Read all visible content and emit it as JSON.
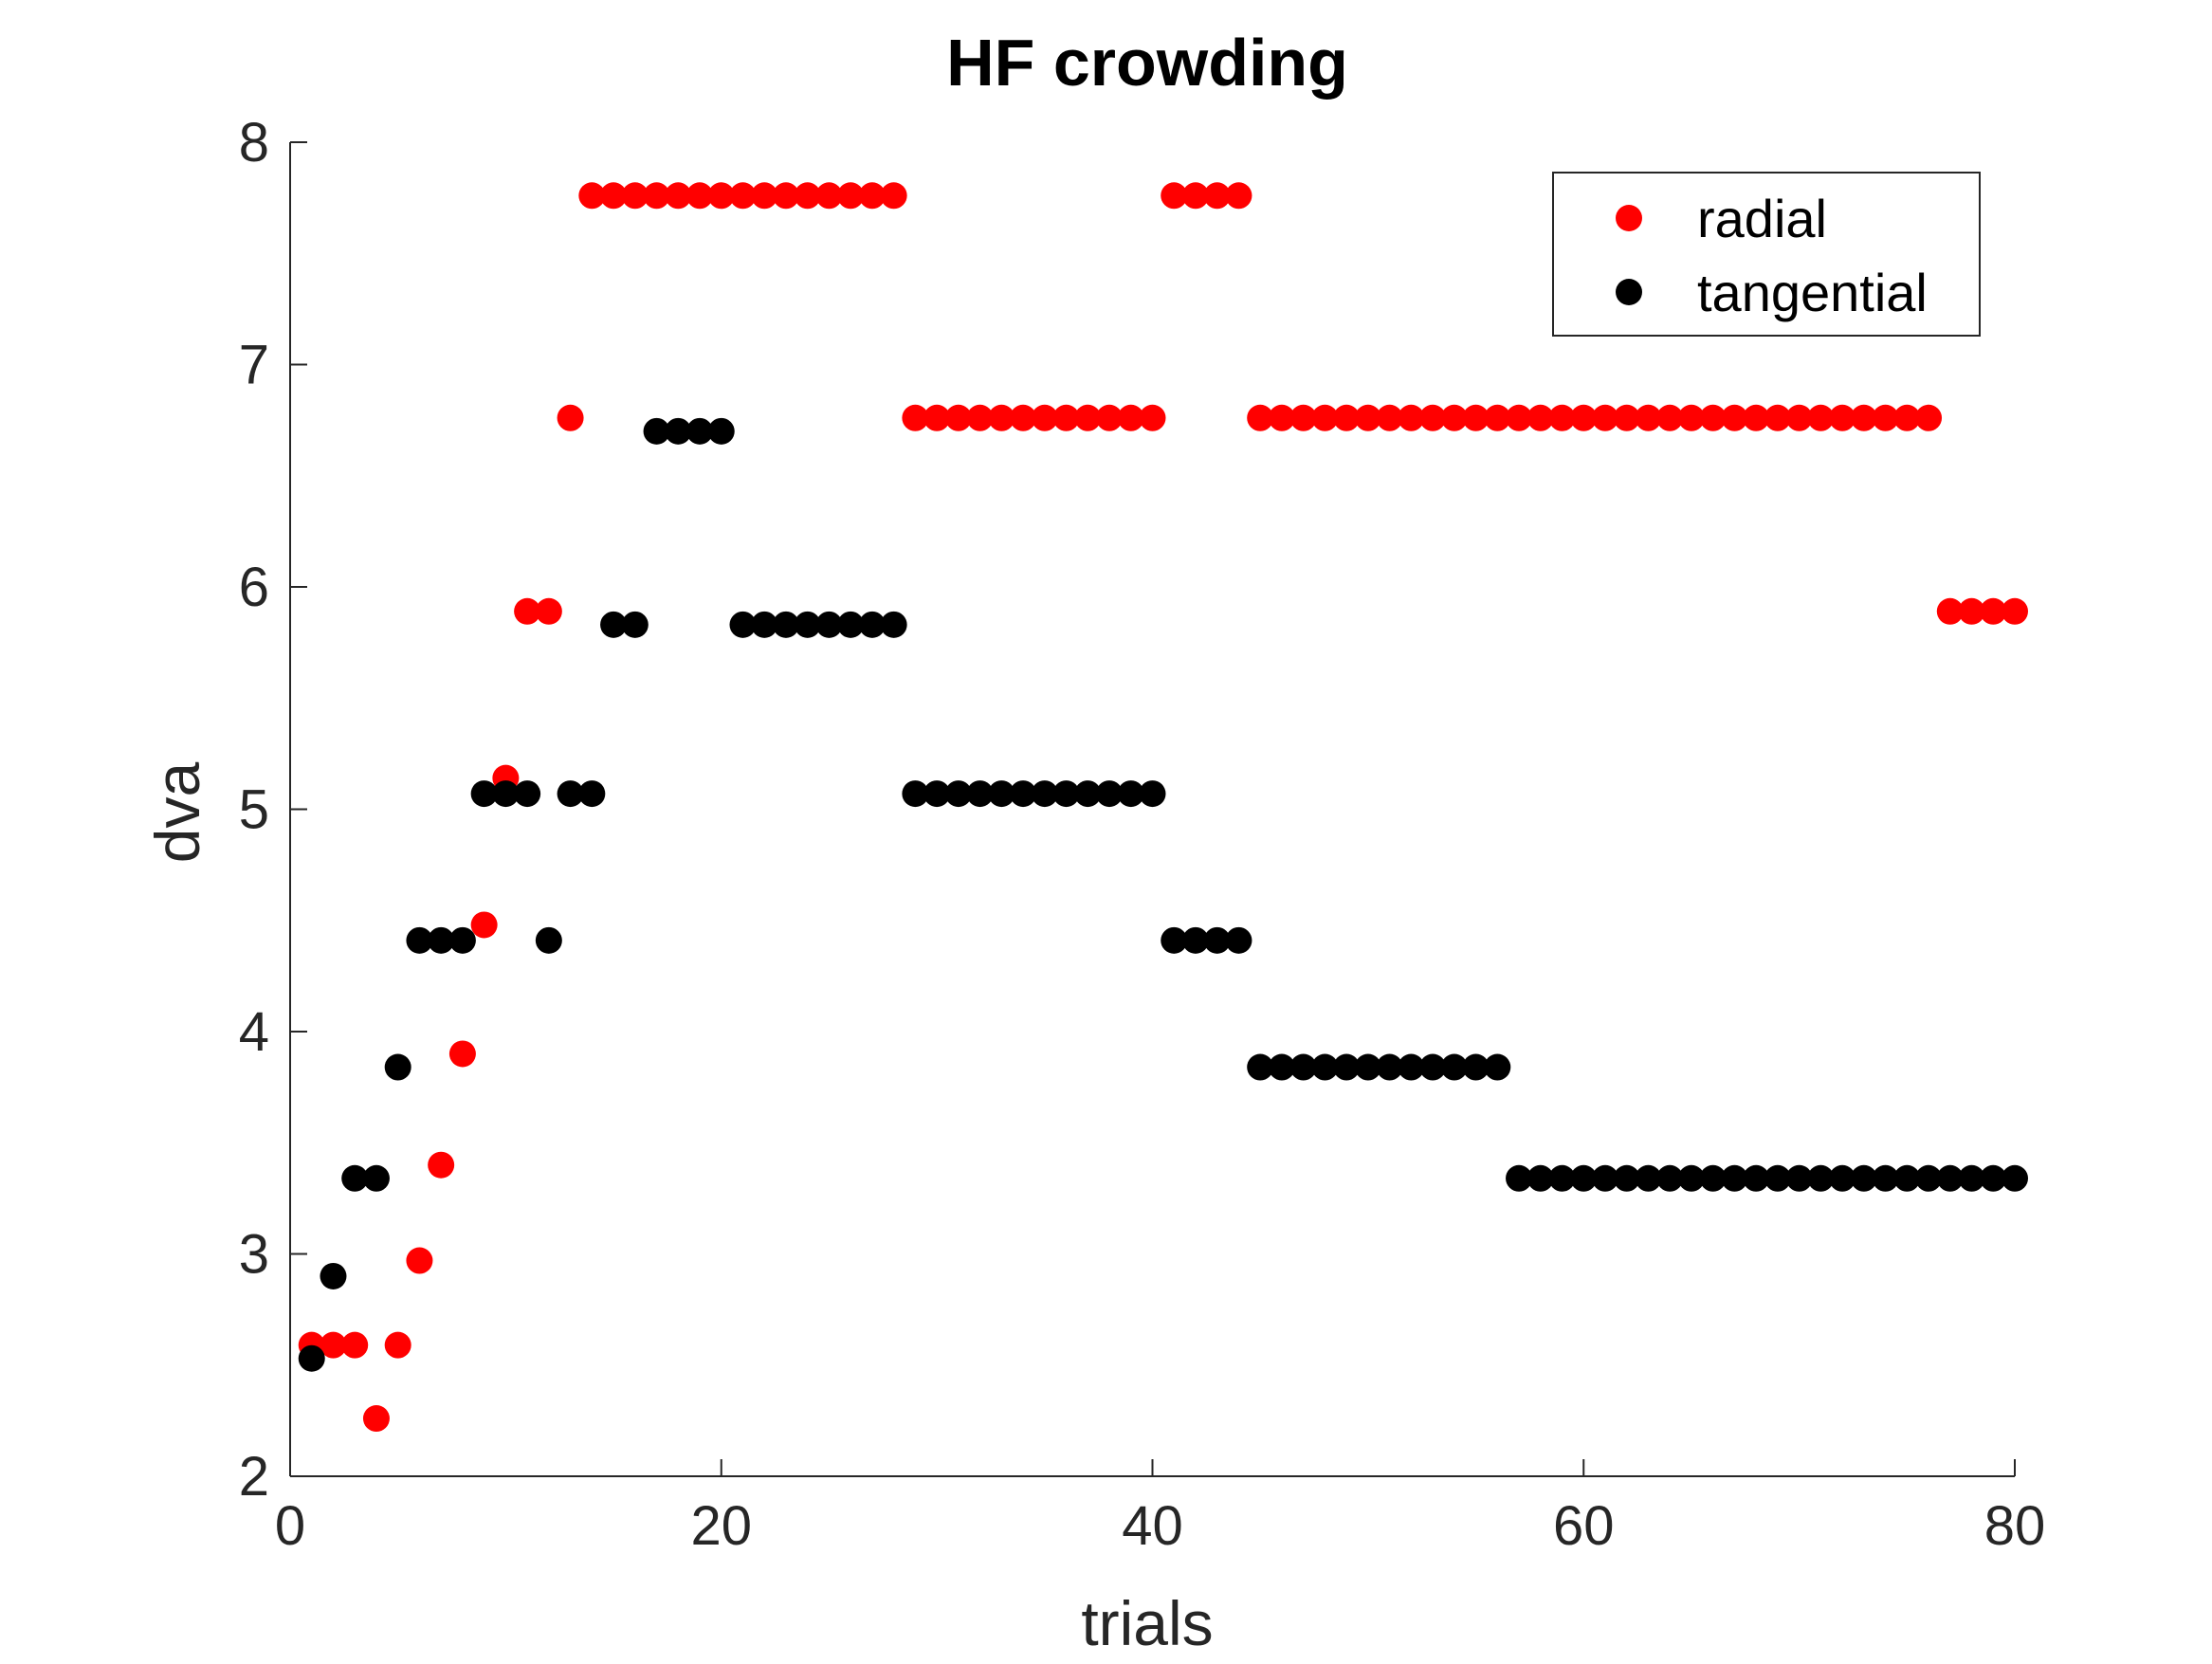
{
  "chart_data": {
    "type": "scatter",
    "title": "HF crowding",
    "xlabel": "trials",
    "ylabel": "dva",
    "xlim": [
      0,
      80
    ],
    "ylim": [
      2,
      8
    ],
    "xticks": [
      0,
      20,
      40,
      60,
      80
    ],
    "yticks": [
      2,
      3,
      4,
      5,
      6,
      7,
      8
    ],
    "xtick_labels": [
      "0",
      "20",
      "40",
      "60",
      "80"
    ],
    "ytick_labels": [
      "2",
      "3",
      "4",
      "5",
      "6",
      "7",
      "8"
    ],
    "grid": false,
    "legend_position": "top-right",
    "series": [
      {
        "name": "radial",
        "color": "#ff0000",
        "x": [
          1,
          2,
          3,
          4,
          5,
          6,
          7,
          8,
          9,
          10,
          11,
          12,
          13,
          14,
          15,
          16,
          17,
          18,
          19,
          20,
          21,
          22,
          23,
          24,
          25,
          26,
          27,
          28,
          29,
          30,
          31,
          32,
          33,
          34,
          35,
          36,
          37,
          38,
          39,
          40,
          41,
          42,
          43,
          44,
          45,
          46,
          47,
          48,
          49,
          50,
          51,
          52,
          53,
          54,
          55,
          56,
          57,
          58,
          59,
          60,
          61,
          62,
          63,
          64,
          65,
          66,
          67,
          68,
          69,
          70,
          71,
          72,
          73,
          74,
          75,
          76,
          77,
          78,
          79,
          80
        ],
        "y": [
          2.59,
          2.59,
          2.59,
          2.26,
          2.59,
          2.97,
          3.4,
          3.9,
          4.48,
          5.14,
          5.89,
          5.89,
          6.76,
          7.76,
          7.76,
          7.76,
          7.76,
          7.76,
          7.76,
          7.76,
          7.76,
          7.76,
          7.76,
          7.76,
          7.76,
          7.76,
          7.76,
          7.76,
          6.76,
          6.76,
          6.76,
          6.76,
          6.76,
          6.76,
          6.76,
          6.76,
          6.76,
          6.76,
          6.76,
          6.76,
          7.76,
          7.76,
          7.76,
          7.76,
          6.76,
          6.76,
          6.76,
          6.76,
          6.76,
          6.76,
          6.76,
          6.76,
          6.76,
          6.76,
          6.76,
          6.76,
          6.76,
          6.76,
          6.76,
          6.76,
          6.76,
          6.76,
          6.76,
          6.76,
          6.76,
          6.76,
          6.76,
          6.76,
          6.76,
          6.76,
          6.76,
          6.76,
          6.76,
          6.76,
          6.76,
          6.76,
          5.89,
          5.89,
          5.89,
          5.89
        ]
      },
      {
        "name": "tangential",
        "color": "#000000",
        "x": [
          1,
          2,
          3,
          4,
          5,
          6,
          7,
          8,
          9,
          10,
          11,
          12,
          13,
          14,
          15,
          16,
          17,
          18,
          19,
          20,
          21,
          22,
          23,
          24,
          25,
          26,
          27,
          28,
          29,
          30,
          31,
          32,
          33,
          34,
          35,
          36,
          37,
          38,
          39,
          40,
          41,
          42,
          43,
          44,
          45,
          46,
          47,
          48,
          49,
          50,
          51,
          52,
          53,
          54,
          55,
          56,
          57,
          58,
          59,
          60,
          61,
          62,
          63,
          64,
          65,
          66,
          67,
          68,
          69,
          70,
          71,
          72,
          73,
          74,
          75,
          76,
          77,
          78,
          79,
          80
        ],
        "y": [
          2.53,
          2.9,
          3.34,
          3.34,
          3.84,
          4.41,
          4.41,
          4.41,
          5.07,
          5.07,
          5.07,
          4.41,
          5.07,
          5.07,
          5.83,
          5.83,
          6.7,
          6.7,
          6.7,
          6.7,
          5.83,
          5.83,
          5.83,
          5.83,
          5.83,
          5.83,
          5.83,
          5.83,
          5.07,
          5.07,
          5.07,
          5.07,
          5.07,
          5.07,
          5.07,
          5.07,
          5.07,
          5.07,
          5.07,
          5.07,
          4.41,
          4.41,
          4.41,
          4.41,
          3.84,
          3.84,
          3.84,
          3.84,
          3.84,
          3.84,
          3.84,
          3.84,
          3.84,
          3.84,
          3.84,
          3.84,
          3.34,
          3.34,
          3.34,
          3.34,
          3.34,
          3.34,
          3.34,
          3.34,
          3.34,
          3.34,
          3.34,
          3.34,
          3.34,
          3.34,
          3.34,
          3.34,
          3.34,
          3.34,
          3.34,
          3.34,
          3.34,
          3.34,
          3.34,
          3.34
        ]
      }
    ]
  }
}
